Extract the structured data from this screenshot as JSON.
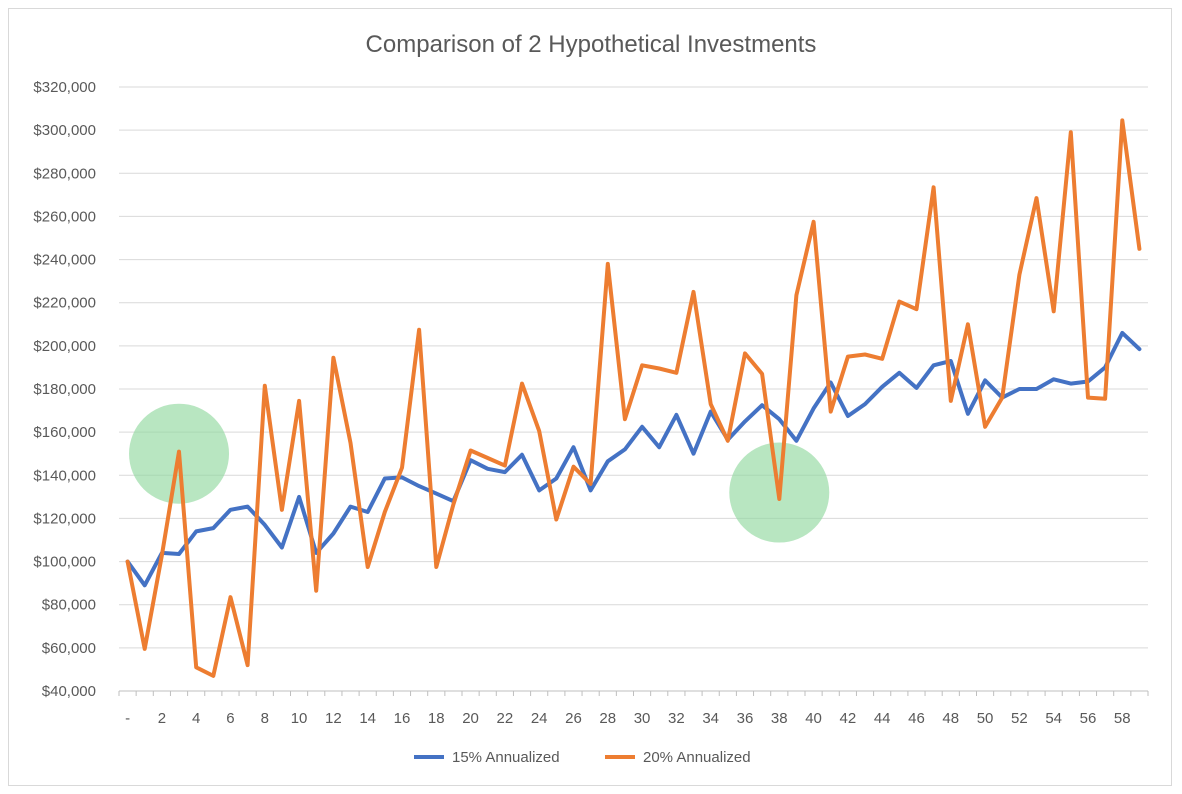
{
  "chart_data": {
    "type": "line",
    "title": "Comparison of 2 Hypothetical Investments",
    "xlabel": "",
    "ylabel": "",
    "x": [
      0,
      1,
      2,
      3,
      4,
      5,
      6,
      7,
      8,
      9,
      10,
      11,
      12,
      13,
      14,
      15,
      16,
      17,
      18,
      19,
      20,
      21,
      22,
      23,
      24,
      25,
      26,
      27,
      28,
      29,
      30,
      31,
      32,
      33,
      34,
      35,
      36,
      37,
      38,
      39,
      40,
      41,
      42,
      43,
      44,
      45,
      46,
      47,
      48,
      49,
      50,
      51,
      52,
      53,
      54,
      55,
      56,
      57,
      58,
      59
    ],
    "x_tick_labels": [
      "-",
      "2",
      "4",
      "6",
      "8",
      "10",
      "12",
      "14",
      "16",
      "18",
      "20",
      "22",
      "24",
      "26",
      "28",
      "30",
      "32",
      "34",
      "36",
      "38",
      "40",
      "42",
      "44",
      "46",
      "48",
      "50",
      "52",
      "54",
      "56",
      "58"
    ],
    "x_tick_values": [
      0,
      2,
      4,
      6,
      8,
      10,
      12,
      14,
      16,
      18,
      20,
      22,
      24,
      26,
      28,
      30,
      32,
      34,
      36,
      38,
      40,
      42,
      44,
      46,
      48,
      50,
      52,
      54,
      56,
      58
    ],
    "ylim": [
      40000,
      320000
    ],
    "y_tick_values": [
      40000,
      60000,
      80000,
      100000,
      120000,
      140000,
      160000,
      180000,
      200000,
      220000,
      240000,
      260000,
      280000,
      300000,
      320000
    ],
    "y_tick_labels": [
      "$40,000",
      "$60,000",
      "$80,000",
      "$100,000",
      "$120,000",
      "$140,000",
      "$160,000",
      "$180,000",
      "$200,000",
      "$220,000",
      "$240,000",
      "$260,000",
      "$280,000",
      "$300,000",
      "$320,000"
    ],
    "grid": true,
    "legend_position": "bottom",
    "series": [
      {
        "name": "15% Annualized",
        "color": "#4472C4",
        "values": [
          100000,
          89000,
          104000,
          103500,
          114000,
          115500,
          124000,
          125500,
          117000,
          106500,
          130000,
          104000,
          113000,
          125500,
          123000,
          138500,
          139000,
          135000,
          131500,
          128000,
          147000,
          143000,
          141500,
          149500,
          133000,
          138500,
          153000,
          133000,
          146500,
          152000,
          162500,
          153000,
          168000,
          150000,
          169500,
          156500,
          165000,
          172500,
          166000,
          156000,
          171000,
          183000,
          167500,
          173000,
          181000,
          187500,
          180500,
          191000,
          193000,
          168500,
          184000,
          176000,
          180000,
          180000,
          184500,
          182500,
          183500,
          190000,
          206000,
          198500
        ]
      },
      {
        "name": "20% Annualized",
        "color": "#ED7D31",
        "values": [
          100000,
          59500,
          103000,
          151000,
          51000,
          47000,
          83500,
          52000,
          181500,
          124000,
          174500,
          86500,
          194500,
          155000,
          97500,
          123000,
          143500,
          207500,
          97500,
          126500,
          151500,
          148000,
          144500,
          182500,
          160500,
          119500,
          144000,
          136000,
          238000,
          166000,
          191000,
          189500,
          187500,
          225000,
          173000,
          156000,
          196500,
          187000,
          129000,
          223500,
          257500,
          169500,
          195000,
          196000,
          194000,
          220500,
          217000,
          273500,
          174500,
          210000,
          162500,
          176000,
          233000,
          268500,
          216000,
          299000,
          176000,
          175500,
          304500,
          245000
        ]
      }
    ],
    "annotations": [
      {
        "shape": "circle",
        "color": "#92D8A0",
        "x": 3,
        "y": 150000
      },
      {
        "shape": "circle",
        "color": "#92D8A0",
        "x": 38,
        "y": 132000
      }
    ],
    "colors": {
      "grid": "#d9d9d9",
      "axis": "#bfbfbf",
      "text": "#595959",
      "frame": "#d9d9d9"
    }
  }
}
